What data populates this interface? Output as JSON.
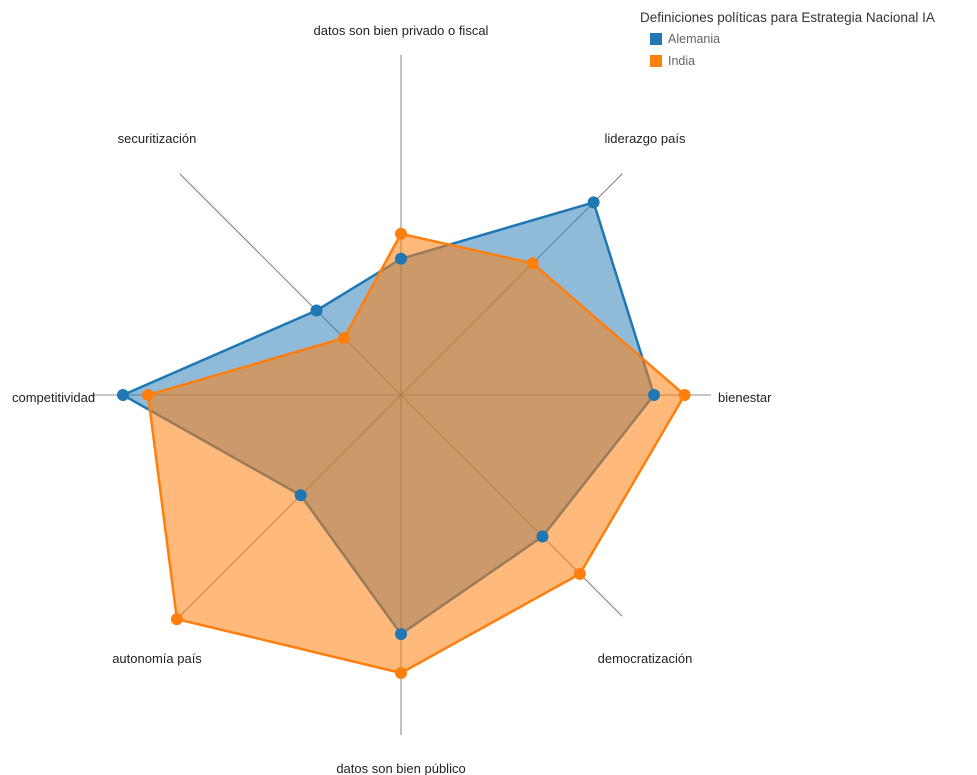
{
  "chart_data": {
    "type": "radar",
    "axes": [
      "datos son bien privado o fiscal",
      "liderazgo país",
      "bienestar",
      "democratización",
      "datos son bien público",
      "autonomía país",
      "competitividad",
      "securitización"
    ],
    "series": [
      {
        "name": "Alemania",
        "color": "#1f77b4",
        "values": [
          0.49,
          0.98,
          0.91,
          0.72,
          0.86,
          0.51,
          1.0,
          0.43
        ]
      },
      {
        "name": "India",
        "color": "#ff7f0e",
        "values": [
          0.58,
          0.67,
          1.02,
          0.91,
          1.0,
          1.14,
          0.91,
          0.29
        ]
      }
    ],
    "range": [
      0,
      1
    ],
    "legend": {
      "title": "Definiciones políticas para Estrategia Nacional IA",
      "position": "top-right"
    }
  }
}
